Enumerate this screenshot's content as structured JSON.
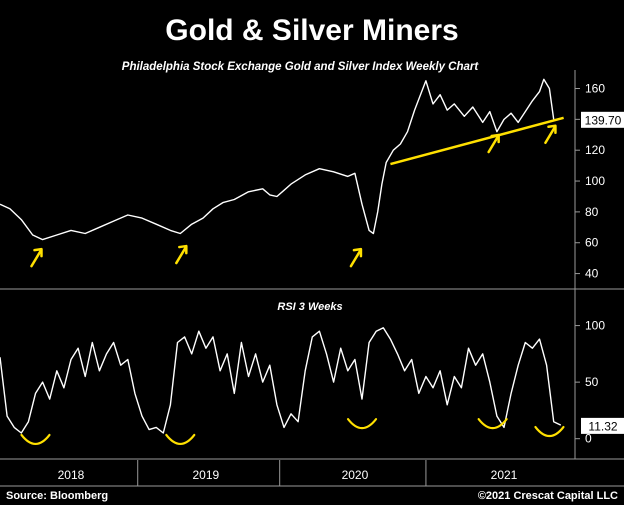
{
  "chart_data": [
    {
      "type": "line",
      "title": "Gold & Silver Miners",
      "subtitle": "Philadelphia Stock Exchange Gold and Silver Index Weekly Chart",
      "y_ticks": [
        40,
        60,
        80,
        100,
        120,
        140,
        160
      ],
      "ylim": [
        30,
        172
      ],
      "last_value_label": "139.70",
      "x_ticks": [
        "2018",
        "2019",
        "2020",
        "2021"
      ],
      "xlim": [
        2017.55,
        2021.6
      ],
      "grid": false,
      "series_color": "#ffffff",
      "x": [
        2017.55,
        2017.62,
        2017.7,
        2017.78,
        2017.85,
        2017.95,
        2018.05,
        2018.15,
        2018.25,
        2018.35,
        2018.45,
        2018.55,
        2018.65,
        2018.75,
        2018.82,
        2018.9,
        2018.98,
        2019.05,
        2019.12,
        2019.2,
        2019.3,
        2019.4,
        2019.45,
        2019.5,
        2019.55,
        2019.6,
        2019.7,
        2019.8,
        2019.9,
        2020.0,
        2020.05,
        2020.1,
        2020.15,
        2020.18,
        2020.21,
        2020.24,
        2020.27,
        2020.32,
        2020.37,
        2020.42,
        2020.47,
        2020.52,
        2020.55,
        2020.6,
        2020.65,
        2020.7,
        2020.75,
        2020.82,
        2020.88,
        2020.95,
        2021.0,
        2021.05,
        2021.1,
        2021.15,
        2021.2,
        2021.25,
        2021.3,
        2021.35,
        2021.38,
        2021.42,
        2021.45
      ],
      "values": [
        85,
        82,
        75,
        65,
        62,
        65,
        68,
        66,
        70,
        74,
        78,
        76,
        72,
        68,
        66,
        72,
        76,
        82,
        86,
        88,
        93,
        95,
        91,
        90,
        94,
        98,
        104,
        108,
        106,
        103,
        105,
        85,
        68,
        66,
        80,
        98,
        112,
        120,
        124,
        132,
        146,
        158,
        165,
        150,
        156,
        146,
        150,
        142,
        148,
        138,
        145,
        132,
        140,
        144,
        138,
        145,
        152,
        158,
        166,
        160,
        140
      ],
      "trendline": {
        "x": [
          2020.3,
          2021.52
        ],
        "values": [
          111,
          141
        ],
        "color": "#ffe000"
      },
      "annotations": [
        {
          "type": "arrow",
          "x": 2017.8,
          "y": 50
        },
        {
          "type": "arrow",
          "x": 2018.82,
          "y": 52
        },
        {
          "type": "arrow",
          "x": 2020.05,
          "y": 50
        },
        {
          "type": "arrow",
          "x": 2021.02,
          "y": 124
        },
        {
          "type": "arrow",
          "x": 2021.42,
          "y": 130
        }
      ]
    },
    {
      "type": "line",
      "title": "RSI 3 Weeks",
      "y_ticks": [
        0,
        50,
        100
      ],
      "ylim": [
        -10,
        112
      ],
      "last_value_label": "11.32",
      "series_color": "#ffffff",
      "x": [
        2017.55,
        2017.6,
        2017.65,
        2017.7,
        2017.75,
        2017.8,
        2017.85,
        2017.9,
        2017.95,
        2018.0,
        2018.05,
        2018.1,
        2018.15,
        2018.2,
        2018.25,
        2018.3,
        2018.35,
        2018.4,
        2018.45,
        2018.5,
        2018.55,
        2018.6,
        2018.65,
        2018.7,
        2018.75,
        2018.8,
        2018.85,
        2018.9,
        2018.95,
        2019.0,
        2019.05,
        2019.1,
        2019.15,
        2019.2,
        2019.25,
        2019.3,
        2019.35,
        2019.4,
        2019.45,
        2019.5,
        2019.55,
        2019.6,
        2019.65,
        2019.7,
        2019.75,
        2019.8,
        2019.85,
        2019.9,
        2019.95,
        2020.0,
        2020.05,
        2020.1,
        2020.15,
        2020.2,
        2020.25,
        2020.3,
        2020.35,
        2020.4,
        2020.45,
        2020.5,
        2020.55,
        2020.6,
        2020.65,
        2020.7,
        2020.75,
        2020.8,
        2020.85,
        2020.9,
        2020.95,
        2021.0,
        2021.05,
        2021.1,
        2021.15,
        2021.2,
        2021.25,
        2021.3,
        2021.35,
        2021.4,
        2021.45,
        2021.5
      ],
      "values": [
        72,
        20,
        10,
        5,
        15,
        40,
        50,
        35,
        60,
        45,
        70,
        80,
        55,
        85,
        60,
        75,
        85,
        65,
        70,
        40,
        20,
        8,
        10,
        5,
        30,
        85,
        90,
        75,
        95,
        80,
        90,
        60,
        75,
        40,
        85,
        55,
        75,
        50,
        65,
        30,
        10,
        22,
        15,
        60,
        90,
        95,
        75,
        50,
        80,
        60,
        70,
        35,
        85,
        95,
        98,
        88,
        75,
        60,
        70,
        40,
        55,
        45,
        60,
        30,
        55,
        45,
        80,
        65,
        75,
        50,
        20,
        10,
        40,
        65,
        85,
        80,
        88,
        65,
        15,
        12
      ],
      "annotations": [
        {
          "type": "smile",
          "x": 2017.8,
          "y": -2
        },
        {
          "type": "smile",
          "x": 2018.82,
          "y": -2
        },
        {
          "type": "smile",
          "x": 2020.1,
          "y": 12
        },
        {
          "type": "smile",
          "x": 2021.02,
          "y": 12
        },
        {
          "type": "smile",
          "x": 2021.42,
          "y": 5
        }
      ]
    }
  ],
  "footer": {
    "source": "Source: Bloomberg",
    "copyright": "©2021 Crescat Capital LLC"
  }
}
